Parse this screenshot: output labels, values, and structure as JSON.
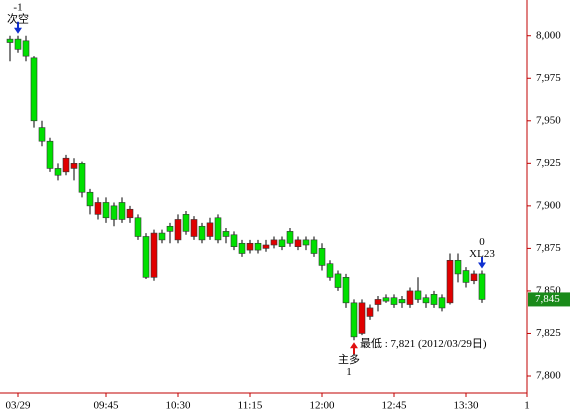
{
  "chart_data": {
    "type": "candlestick",
    "categories": [
      null,
      "03/29",
      null,
      null,
      null,
      null,
      null,
      null,
      null,
      null,
      null,
      null,
      "09:45",
      null,
      null,
      null,
      null,
      null,
      null,
      null,
      null,
      "10:30",
      null,
      null,
      null,
      null,
      null,
      null,
      null,
      null,
      "11:15",
      null,
      null,
      null,
      null,
      null,
      null,
      null,
      null,
      "12:00",
      null,
      null,
      null,
      null,
      null,
      null,
      null,
      null,
      "12:45",
      null,
      null,
      null,
      null,
      null,
      null,
      null,
      null,
      "13:30",
      null,
      null
    ],
    "x_axis_end_label": "1",
    "open": [
      7998,
      7998,
      7997,
      7987,
      7946,
      7938,
      7922,
      7920,
      7922,
      7925,
      7908,
      7895,
      7902,
      7900,
      7902,
      7893,
      7893,
      7882,
      7858,
      7884,
      7888,
      7880,
      7895,
      7882,
      7888,
      7882,
      7893,
      7885,
      7883,
      7878,
      7874,
      7878,
      7875,
      7877,
      7880,
      7885,
      7876,
      7880,
      7880,
      7875,
      7866,
      7860,
      7858,
      7843,
      7825,
      7835,
      7842,
      7846,
      7846,
      7845,
      7842,
      7850,
      7846,
      7848,
      7846,
      7843,
      7868,
      7862,
      7856,
      7860
    ],
    "high": [
      8000,
      8000,
      8000,
      7988,
      7950,
      7940,
      7925,
      7930,
      7928,
      7926,
      7910,
      7905,
      7905,
      7902,
      7905,
      7900,
      7895,
      7884,
      7886,
      7886,
      7890,
      7895,
      7897,
      7894,
      7890,
      7893,
      7895,
      7887,
      7885,
      7880,
      7880,
      7880,
      7880,
      7882,
      7882,
      7887,
      7882,
      7882,
      7882,
      7878,
      7868,
      7862,
      7860,
      7845,
      7845,
      7842,
      7847,
      7848,
      7848,
      7847,
      7852,
      7858,
      7848,
      7850,
      7848,
      7872,
      7872,
      7864,
      7862,
      7862
    ],
    "low": [
      7985,
      7990,
      7985,
      7946,
      7935,
      7920,
      7915,
      7918,
      7915,
      7905,
      7895,
      7892,
      7890,
      7888,
      7890,
      7890,
      7880,
      7857,
      7856,
      7878,
      7878,
      7878,
      7883,
      7880,
      7878,
      7880,
      7878,
      7878,
      7874,
      7870,
      7872,
      7872,
      7873,
      7875,
      7874,
      7876,
      7874,
      7874,
      7870,
      7862,
      7856,
      7850,
      7840,
      7821,
      7824,
      7833,
      7838,
      7843,
      7840,
      7840,
      7840,
      7843,
      7840,
      7840,
      7838,
      7842,
      7855,
      7852,
      7854,
      7843
    ],
    "close": [
      7996,
      7992,
      7988,
      7950,
      7938,
      7922,
      7918,
      7928,
      7925,
      7908,
      7900,
      7902,
      7893,
      7892,
      7892,
      7898,
      7882,
      7858,
      7884,
      7880,
      7885,
      7892,
      7885,
      7892,
      7880,
      7890,
      7880,
      7882,
      7876,
      7872,
      7878,
      7874,
      7877,
      7880,
      7876,
      7878,
      7880,
      7877,
      7872,
      7865,
      7858,
      7852,
      7843,
      7823,
      7843,
      7840,
      7845,
      7844,
      7842,
      7843,
      7850,
      7845,
      7843,
      7842,
      7840,
      7868,
      7860,
      7855,
      7860,
      7845
    ],
    "up_color": "#e00000",
    "down_color": "#00e000",
    "ylim": [
      7790,
      8021
    ],
    "yticks": [
      {
        "value": 7800,
        "label": "7,800"
      },
      {
        "value": 7825,
        "label": "7,825"
      },
      {
        "value": 7850,
        "label": "7,850"
      },
      {
        "value": 7875,
        "label": "7,875"
      },
      {
        "value": 7900,
        "label": "7,900"
      },
      {
        "value": 7925,
        "label": "7,925"
      },
      {
        "value": 7950,
        "label": "7,950"
      },
      {
        "value": 7975,
        "label": "7,975"
      },
      {
        "value": 8000,
        "label": "8,000"
      }
    ],
    "last_price": {
      "value": 7845,
      "label": "7,845"
    },
    "annotations": [
      {
        "index": 1,
        "direction": "sell",
        "lines": [
          "-1",
          "次空"
        ]
      },
      {
        "index": 43,
        "direction": "buy",
        "lines": [
          "主多",
          "1"
        ],
        "note": "最低 : 7,821 (2012/03/29日)"
      },
      {
        "index": 59,
        "direction": "sell",
        "lines": [
          "0",
          "XL23"
        ]
      }
    ]
  }
}
